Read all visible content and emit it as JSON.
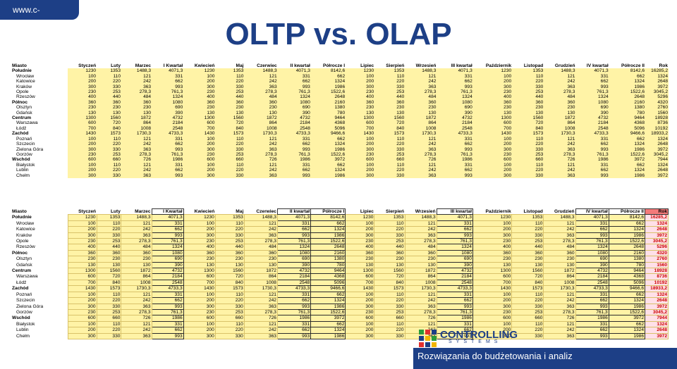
{
  "header": {
    "site": "www.c-systems.pl",
    "title": "OLTP vs. OLAP"
  },
  "columns": [
    "Miasto",
    "Styczeń",
    "Luty",
    "Marzec",
    "I Kwartał",
    "Kwiecień",
    "Maj",
    "Czerwiec",
    "II kwartał",
    "Półrocze I",
    "Lipiec",
    "Sierpień",
    "Wrzesień",
    "III kwartał",
    "Październik",
    "Listopad",
    "Grudzień",
    "IV kwartał",
    "Półrocze II",
    "Rok"
  ],
  "quarter_columns": [
    4,
    8,
    9,
    13,
    17,
    18
  ],
  "rows": [
    {
      "kind": "region",
      "name": "Południe",
      "values": [
        "1230",
        "1353",
        "1488,3",
        "4071,3",
        "1230",
        "1353",
        "1488,3",
        "4071,3",
        "8142,6",
        "1230",
        "1353",
        "1488,3",
        "4071,3",
        "1230",
        "1353",
        "1488,3",
        "4071,3",
        "8142,6",
        "16285,2"
      ]
    },
    {
      "kind": "city",
      "name": "Wrocław",
      "values": [
        "100",
        "110",
        "121",
        "331",
        "100",
        "110",
        "121",
        "331",
        "662",
        "100",
        "110",
        "121",
        "331",
        "100",
        "110",
        "121",
        "331",
        "662",
        "1324"
      ]
    },
    {
      "kind": "city",
      "name": "Katowice",
      "values": [
        "200",
        "220",
        "242",
        "662",
        "200",
        "220",
        "242",
        "662",
        "1324",
        "200",
        "220",
        "242",
        "662",
        "200",
        "220",
        "242",
        "662",
        "1324",
        "2648"
      ]
    },
    {
      "kind": "city",
      "name": "Kraków",
      "values": [
        "300",
        "330",
        "363",
        "993",
        "300",
        "330",
        "363",
        "993",
        "1986",
        "300",
        "330",
        "363",
        "993",
        "300",
        "330",
        "363",
        "993",
        "1986",
        "3972"
      ]
    },
    {
      "kind": "city",
      "name": "Opole",
      "values": [
        "230",
        "253",
        "278,3",
        "761,3",
        "230",
        "253",
        "278,3",
        "761,3",
        "1522,6",
        "230",
        "253",
        "278,3",
        "761,3",
        "230",
        "253",
        "278,3",
        "761,3",
        "1522,6",
        "3045,2"
      ]
    },
    {
      "kind": "city",
      "name": "Rzeszów",
      "values": [
        "400",
        "440",
        "484",
        "1324",
        "400",
        "440",
        "484",
        "1324",
        "2648",
        "400",
        "440",
        "484",
        "1324",
        "400",
        "440",
        "484",
        "1324",
        "2648",
        "5296"
      ]
    },
    {
      "kind": "region",
      "name": "Północ",
      "values": [
        "360",
        "360",
        "360",
        "1080",
        "360",
        "360",
        "360",
        "1080",
        "2160",
        "360",
        "360",
        "360",
        "1080",
        "360",
        "360",
        "360",
        "1080",
        "2160",
        "4320"
      ]
    },
    {
      "kind": "city",
      "name": "Olsztyn",
      "values": [
        "230",
        "230",
        "230",
        "690",
        "230",
        "230",
        "230",
        "690",
        "1380",
        "230",
        "230",
        "230",
        "690",
        "230",
        "230",
        "230",
        "690",
        "1380",
        "2760"
      ]
    },
    {
      "kind": "city",
      "name": "Gdańsk",
      "values": [
        "130",
        "130",
        "130",
        "390",
        "130",
        "130",
        "130",
        "390",
        "780",
        "130",
        "130",
        "130",
        "390",
        "130",
        "130",
        "130",
        "390",
        "780",
        "1560"
      ]
    },
    {
      "kind": "region",
      "name": "Centrum",
      "values": [
        "1300",
        "1560",
        "1872",
        "4732",
        "1300",
        "1560",
        "1872",
        "4732",
        "9464",
        "1300",
        "1560",
        "1872",
        "4732",
        "1300",
        "1560",
        "1872",
        "4732",
        "9464",
        "18928"
      ]
    },
    {
      "kind": "city",
      "name": "Warszawa",
      "values": [
        "600",
        "720",
        "864",
        "2184",
        "600",
        "720",
        "864",
        "2184",
        "4368",
        "600",
        "720",
        "864",
        "2184",
        "600",
        "720",
        "864",
        "2184",
        "4368",
        "8736"
      ]
    },
    {
      "kind": "city",
      "name": "Łódź",
      "values": [
        "700",
        "840",
        "1008",
        "2548",
        "700",
        "840",
        "1008",
        "2548",
        "5096",
        "700",
        "840",
        "1008",
        "2548",
        "700",
        "840",
        "1008",
        "2548",
        "5096",
        "10192"
      ]
    },
    {
      "kind": "region",
      "name": "Zachód",
      "values": [
        "1430",
        "1573",
        "1730,3",
        "4733,3",
        "1430",
        "1573",
        "1730,3",
        "4733,3",
        "9466,6",
        "1430",
        "1573",
        "1730,3",
        "4733,3",
        "1430",
        "1573",
        "1730,3",
        "4733,3",
        "9466,6",
        "18933,2"
      ]
    },
    {
      "kind": "city",
      "name": "Poznań",
      "values": [
        "100",
        "110",
        "121",
        "331",
        "100",
        "110",
        "121",
        "331",
        "662",
        "100",
        "110",
        "121",
        "331",
        "100",
        "110",
        "121",
        "331",
        "662",
        "1324"
      ]
    },
    {
      "kind": "city",
      "name": "Szczecin",
      "values": [
        "200",
        "220",
        "242",
        "662",
        "200",
        "220",
        "242",
        "662",
        "1324",
        "200",
        "220",
        "242",
        "662",
        "200",
        "220",
        "242",
        "662",
        "1324",
        "2648"
      ]
    },
    {
      "kind": "city",
      "name": "Zielona Góra",
      "values": [
        "300",
        "330",
        "363",
        "993",
        "300",
        "330",
        "363",
        "993",
        "1986",
        "300",
        "330",
        "363",
        "993",
        "300",
        "330",
        "363",
        "993",
        "1986",
        "3972"
      ]
    },
    {
      "kind": "city",
      "name": "Gorzów",
      "values": [
        "230",
        "253",
        "278,3",
        "761,3",
        "230",
        "253",
        "278,3",
        "761,3",
        "1522,6",
        "230",
        "253",
        "278,3",
        "761,3",
        "230",
        "253",
        "278,3",
        "761,3",
        "1522,6",
        "3045,2"
      ]
    },
    {
      "kind": "region",
      "name": "Wschód",
      "values": [
        "600",
        "660",
        "726",
        "1986",
        "600",
        "660",
        "726",
        "1986",
        "3972",
        "600",
        "660",
        "726",
        "1986",
        "600",
        "660",
        "726",
        "1986",
        "3972",
        "7944"
      ]
    },
    {
      "kind": "city",
      "name": "Białystok",
      "values": [
        "100",
        "110",
        "121",
        "331",
        "100",
        "110",
        "121",
        "331",
        "662",
        "100",
        "110",
        "121",
        "331",
        "100",
        "110",
        "121",
        "331",
        "662",
        "1324"
      ]
    },
    {
      "kind": "city",
      "name": "Lublin",
      "values": [
        "200",
        "220",
        "242",
        "662",
        "200",
        "220",
        "242",
        "662",
        "1324",
        "200",
        "220",
        "242",
        "662",
        "200",
        "220",
        "242",
        "662",
        "1324",
        "2648"
      ]
    },
    {
      "kind": "city",
      "name": "Chełm",
      "values": [
        "300",
        "330",
        "363",
        "993",
        "300",
        "330",
        "363",
        "993",
        "1986",
        "300",
        "330",
        "363",
        "993",
        "300",
        "330",
        "363",
        "993",
        "1986",
        "3972"
      ]
    }
  ],
  "footer": {
    "brand": "CONTROLLING",
    "brand_sub": "SYSTEMS",
    "tagline": "Rozwiązania do budżetowania i analiz"
  },
  "colors": {
    "brand_blue": "#1d3f86",
    "cell_yellow": "#fff3a6",
    "rok_red": "#cc0000",
    "rok_header": "#f47a7a"
  }
}
